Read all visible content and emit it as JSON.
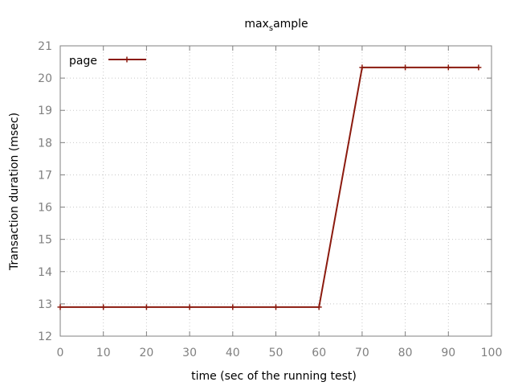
{
  "chart_data": {
    "type": "line",
    "title_main": "max",
    "title_sub": "s",
    "title_rest": "ample",
    "xlabel": "time (sec of the running test)",
    "ylabel": "Transaction duration (msec)",
    "xlim": [
      0,
      100
    ],
    "ylim": [
      12,
      21
    ],
    "x_ticks": [
      0,
      10,
      20,
      30,
      40,
      50,
      60,
      70,
      80,
      90,
      100
    ],
    "y_ticks": [
      12,
      13,
      14,
      15,
      16,
      17,
      18,
      19,
      20,
      21
    ],
    "grid": true,
    "legend_position": "top-left",
    "series": [
      {
        "name": "page",
        "color": "#8b1a0e",
        "x": [
          0,
          10,
          20,
          30,
          40,
          50,
          60,
          70,
          80,
          90,
          97
        ],
        "y": [
          12.9,
          12.9,
          12.9,
          12.9,
          12.9,
          12.9,
          12.9,
          20.33,
          20.33,
          20.33,
          20.33
        ]
      }
    ]
  }
}
